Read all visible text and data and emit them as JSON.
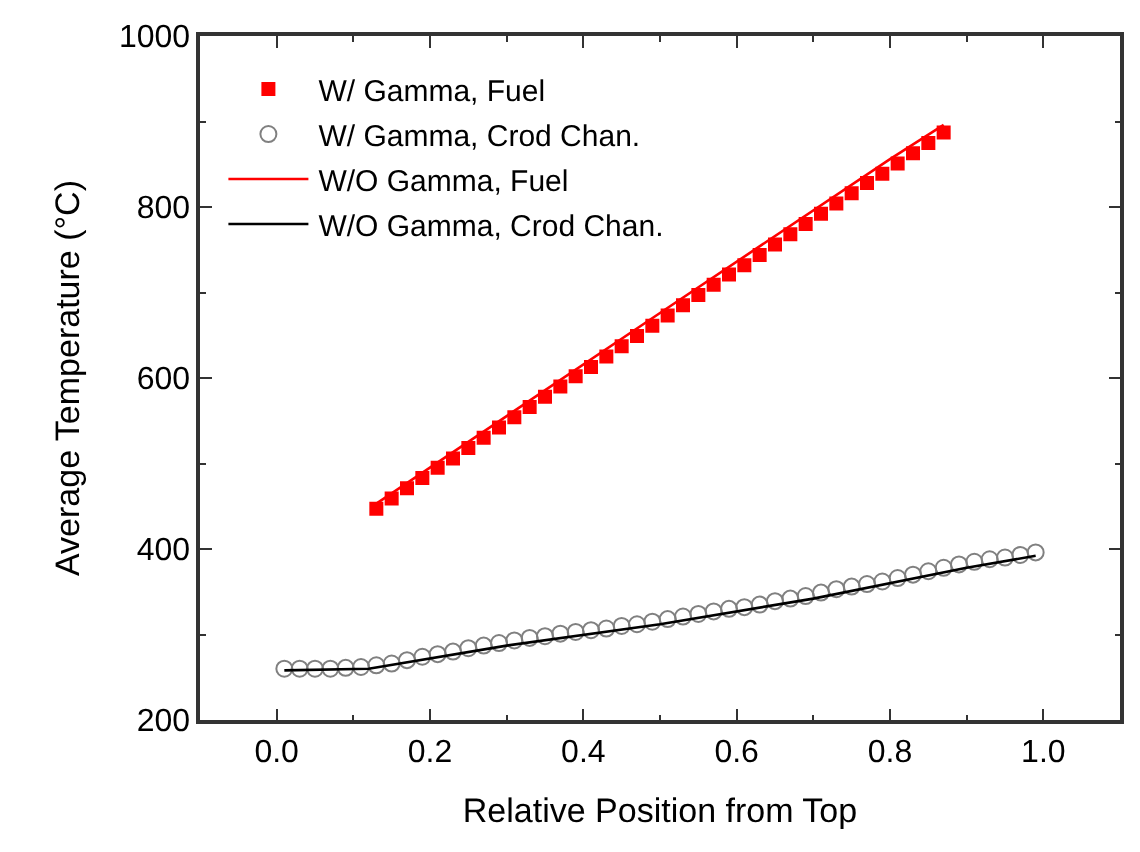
{
  "chart_data": {
    "type": "line",
    "xlabel": "Relative Position from Top",
    "ylabel": "Average Temperature (°C)",
    "xlim": [
      -0.1,
      1.1
    ],
    "xticks": [
      {
        "value": 0,
        "label": "0.0"
      },
      0.2,
      0.4,
      0.6,
      0.8,
      {
        "value": 1,
        "label": "1.0"
      }
    ],
    "ylim": [
      200,
      1000
    ],
    "yticks": [
      200,
      400,
      600,
      800,
      1000
    ],
    "legend": "top left",
    "series": [
      {
        "name": "W/ Gamma, Fuel",
        "type": "scatter",
        "marker": "square",
        "color": "#ff0000",
        "x": [
          0.13,
          0.15,
          0.17,
          0.19,
          0.21,
          0.23,
          0.25,
          0.27,
          0.29,
          0.31,
          0.33,
          0.35,
          0.37,
          0.39,
          0.41,
          0.43,
          0.45,
          0.47,
          0.49,
          0.51,
          0.53,
          0.55,
          0.57,
          0.59,
          0.61,
          0.63,
          0.65,
          0.67,
          0.69,
          0.71,
          0.73,
          0.75,
          0.77,
          0.79,
          0.81,
          0.83,
          0.85,
          0.87
        ],
        "values": [
          447,
          459,
          471,
          483,
          495,
          506,
          518,
          530,
          542,
          554,
          566,
          578,
          590,
          602,
          613,
          625,
          637,
          649,
          661,
          673,
          685,
          697,
          709,
          721,
          732,
          744,
          756,
          768,
          780,
          792,
          804,
          816,
          828,
          839,
          851,
          863,
          875,
          887
        ]
      },
      {
        "name": "W/ Gamma, Crod Chan.",
        "type": "scatter",
        "marker": "circle",
        "color": "#808080",
        "x": [
          0.01,
          0.03,
          0.05,
          0.07,
          0.09,
          0.11,
          0.13,
          0.15,
          0.17,
          0.19,
          0.21,
          0.23,
          0.25,
          0.27,
          0.29,
          0.31,
          0.33,
          0.35,
          0.37,
          0.39,
          0.41,
          0.43,
          0.45,
          0.47,
          0.49,
          0.51,
          0.53,
          0.55,
          0.57,
          0.59,
          0.61,
          0.63,
          0.65,
          0.67,
          0.69,
          0.71,
          0.73,
          0.75,
          0.77,
          0.79,
          0.81,
          0.83,
          0.85,
          0.87,
          0.89,
          0.91,
          0.93,
          0.95,
          0.97,
          0.99
        ],
        "values": [
          260,
          260,
          260,
          260,
          261,
          262,
          264,
          266,
          270,
          274,
          277,
          280,
          284,
          287,
          290,
          293,
          296,
          298,
          301,
          303,
          305,
          307,
          310,
          312,
          315,
          318,
          321,
          324,
          327,
          330,
          332,
          335,
          339,
          342,
          345,
          349,
          353,
          356,
          359,
          362,
          366,
          370,
          374,
          378,
          382,
          385,
          388,
          390,
          393,
          396
        ]
      },
      {
        "name": "W/O Gamma, Fuel",
        "type": "line",
        "marker": "none",
        "line_style": "solid",
        "color": "#ff0000",
        "x": [
          0.13,
          0.5,
          0.8,
          0.87
        ],
        "values": [
          453,
          676,
          856,
          896
        ]
      },
      {
        "name": "W/O Gamma, Crod Chan.",
        "type": "line",
        "marker": "none",
        "line_style": "solid",
        "color": "#000000",
        "x": [
          0.01,
          0.12,
          0.3,
          0.5,
          0.7,
          0.9,
          0.99
        ],
        "values": [
          258,
          260,
          287,
          312,
          342,
          378,
          392
        ]
      }
    ]
  }
}
